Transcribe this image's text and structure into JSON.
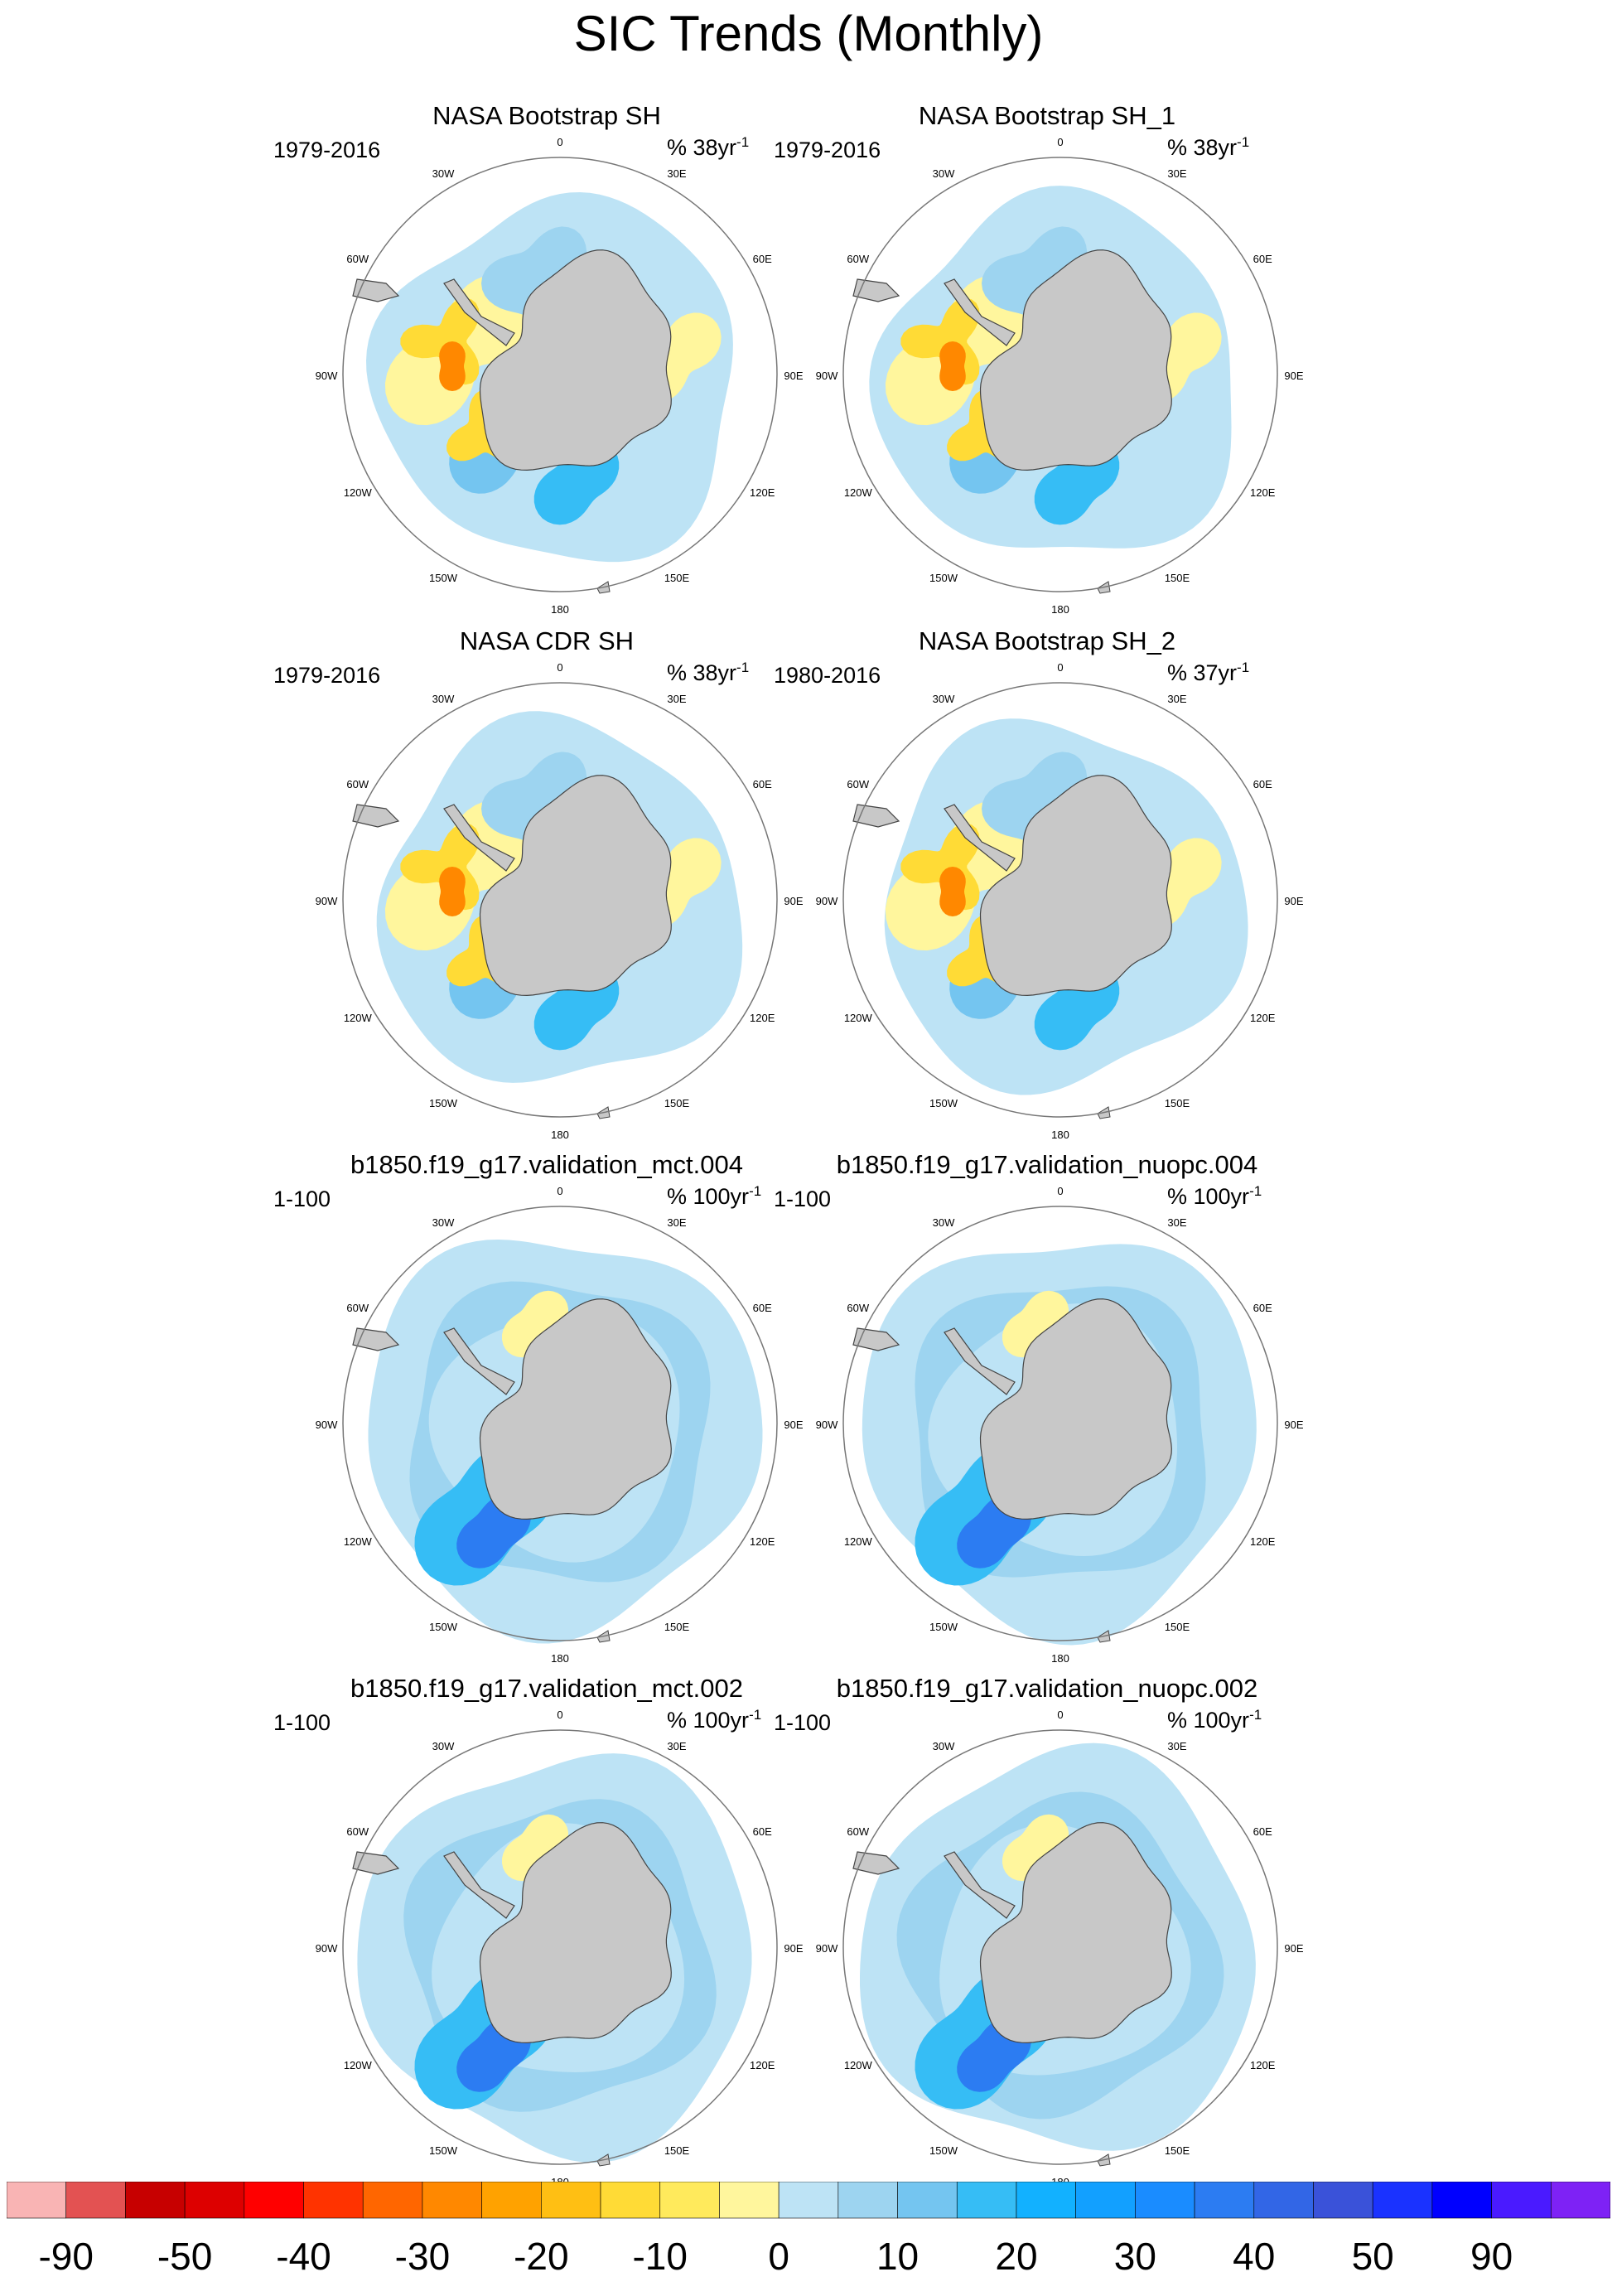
{
  "title": "SIC Trends (Monthly)",
  "panels": [
    {
      "title": "NASA Bootstrap SH",
      "period": "1979-2016",
      "units_prefix": "% 38yr",
      "units_exp": "-1",
      "pattern": "obs"
    },
    {
      "title": "NASA Bootstrap SH_1",
      "period": "1979-2016",
      "units_prefix": "% 38yr",
      "units_exp": "-1",
      "pattern": "obs"
    },
    {
      "title": "NASA CDR SH",
      "period": "1979-2016",
      "units_prefix": "% 38yr",
      "units_exp": "-1",
      "pattern": "obs"
    },
    {
      "title": "NASA Bootstrap SH_2",
      "period": "1980-2016",
      "units_prefix": "% 37yr",
      "units_exp": "-1",
      "pattern": "obs"
    },
    {
      "title": "b1850.f19_g17.validation_mct.004",
      "period": "1-100",
      "units_prefix": "% 100yr",
      "units_exp": "-1",
      "pattern": "model"
    },
    {
      "title": "b1850.f19_g17.validation_nuopc.004",
      "period": "1-100",
      "units_prefix": "% 100yr",
      "units_exp": "-1",
      "pattern": "model"
    },
    {
      "title": "b1850.f19_g17.validation_mct.002",
      "period": "1-100",
      "units_prefix": "% 100yr",
      "units_exp": "-1",
      "pattern": "model"
    },
    {
      "title": "b1850.f19_g17.validation_nuopc.002",
      "period": "1-100",
      "units_prefix": "% 100yr",
      "units_exp": "-1",
      "pattern": "model"
    }
  ],
  "map": {
    "longitude_labels": [
      "0",
      "30E",
      "60E",
      "90E",
      "120E",
      "150E",
      "180",
      "150W",
      "120W",
      "90W",
      "60W",
      "30W"
    ],
    "land_color": "#c8c8c8",
    "ocean_background": "#ffffff"
  },
  "colorbar": {
    "colors": [
      "#f9b4b4",
      "#e35252",
      "#c70000",
      "#dd0000",
      "#ff0000",
      "#ff3300",
      "#ff6600",
      "#ff8800",
      "#ffa200",
      "#ffbf13",
      "#ffdb36",
      "#ffea5c",
      "#fff69d",
      "#bde3f5",
      "#9dd4f0",
      "#74c5f0",
      "#36bdf5",
      "#12b1ff",
      "#12a0ff",
      "#1a8cff",
      "#2c7cf2",
      "#3266e6",
      "#3a52d9",
      "#1a32ff",
      "#0000ff",
      "#4a1aff",
      "#7e22f5"
    ],
    "labels": [
      {
        "text": "-90",
        "boundary": 1
      },
      {
        "text": "-50",
        "boundary": 3
      },
      {
        "text": "-40",
        "boundary": 5
      },
      {
        "text": "-30",
        "boundary": 7
      },
      {
        "text": "-20",
        "boundary": 9
      },
      {
        "text": "-10",
        "boundary": 11
      },
      {
        "text": "0",
        "boundary": 13
      },
      {
        "text": "10",
        "boundary": 15
      },
      {
        "text": "20",
        "boundary": 17
      },
      {
        "text": "30",
        "boundary": 19
      },
      {
        "text": "40",
        "boundary": 21
      },
      {
        "text": "50",
        "boundary": 23
      },
      {
        "text": "90",
        "boundary": 25
      }
    ]
  }
}
